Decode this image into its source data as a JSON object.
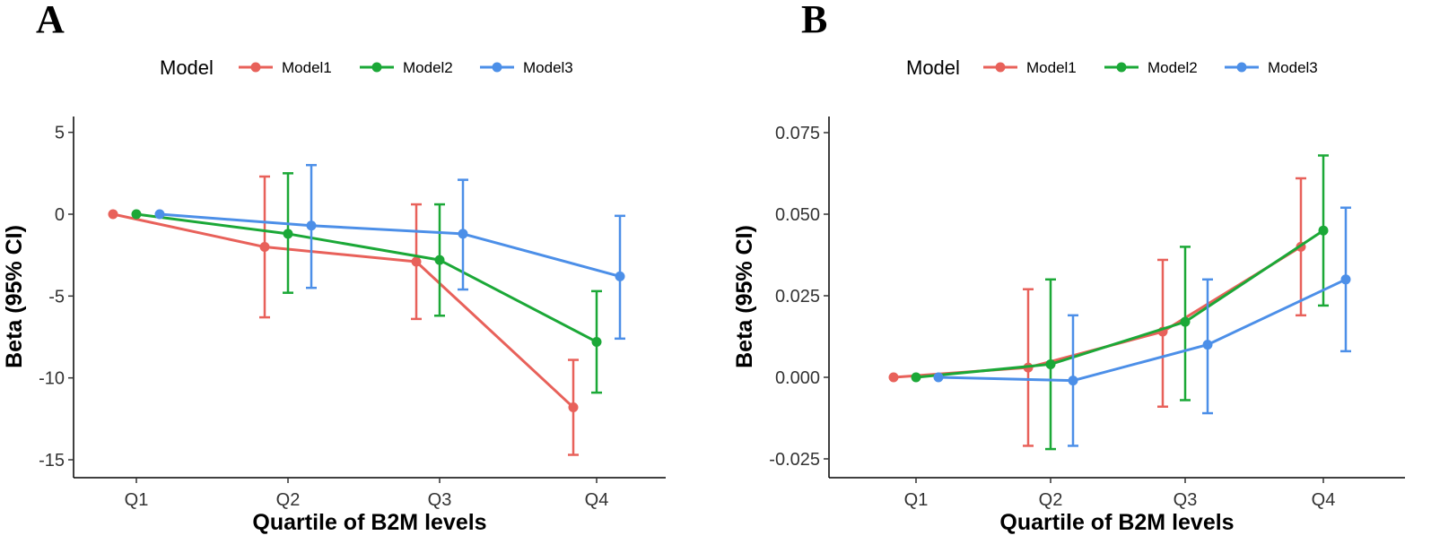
{
  "chart_data": [
    {
      "type": "line",
      "panel_label": "A",
      "legend_title": "Model",
      "xlabel": "Quartile of B2M levels",
      "ylabel": "Beta (95% CI)",
      "categories": [
        "Q1",
        "Q2",
        "Q3",
        "Q4"
      ],
      "ylim": [
        -16,
        6
      ],
      "yticks": [
        5,
        0,
        -5,
        -10,
        -15
      ],
      "ytick_labels": [
        "5",
        "0",
        "-5",
        "-10",
        "-15"
      ],
      "series": [
        {
          "name": "Model1",
          "color": "#E8615A",
          "values": [
            0,
            -2.0,
            -2.9,
            -11.8
          ],
          "lower": [
            null,
            -6.3,
            -6.4,
            -14.7
          ],
          "upper": [
            null,
            2.3,
            0.6,
            -8.9
          ]
        },
        {
          "name": "Model2",
          "color": "#1BA837",
          "values": [
            0,
            -1.2,
            -2.8,
            -7.8
          ],
          "lower": [
            null,
            -4.8,
            -6.2,
            -10.9
          ],
          "upper": [
            null,
            2.5,
            0.6,
            -4.7
          ]
        },
        {
          "name": "Model3",
          "color": "#4C8FE8",
          "values": [
            0,
            -0.7,
            -1.2,
            -3.8
          ],
          "lower": [
            null,
            -4.5,
            -4.6,
            -7.6
          ],
          "upper": [
            null,
            3.0,
            2.1,
            -0.1
          ]
        }
      ]
    },
    {
      "type": "line",
      "panel_label": "B",
      "legend_title": "Model",
      "xlabel": "Quartile of B2M levels",
      "ylabel": "Beta (95% CI)",
      "categories": [
        "Q1",
        "Q2",
        "Q3",
        "Q4"
      ],
      "ylim": [
        -0.03,
        0.08
      ],
      "yticks": [
        0.075,
        0.05,
        0.025,
        0.0,
        -0.025
      ],
      "ytick_labels": [
        "0.075",
        "0.050",
        "0.025",
        "0.000",
        "-0.025"
      ],
      "series": [
        {
          "name": "Model1",
          "color": "#E8615A",
          "values": [
            0,
            0.003,
            0.014,
            0.04
          ],
          "lower": [
            null,
            -0.021,
            -0.009,
            0.019
          ],
          "upper": [
            null,
            0.027,
            0.036,
            0.061
          ]
        },
        {
          "name": "Model2",
          "color": "#1BA837",
          "values": [
            0,
            0.004,
            0.017,
            0.045
          ],
          "lower": [
            null,
            -0.022,
            -0.007,
            0.022
          ],
          "upper": [
            null,
            0.03,
            0.04,
            0.068
          ]
        },
        {
          "name": "Model3",
          "color": "#4C8FE8",
          "values": [
            0,
            -0.001,
            0.01,
            0.03
          ],
          "lower": [
            null,
            -0.021,
            -0.011,
            0.008
          ],
          "upper": [
            null,
            0.019,
            0.03,
            0.052
          ]
        }
      ]
    }
  ]
}
